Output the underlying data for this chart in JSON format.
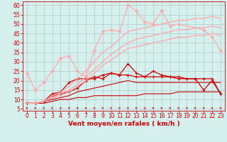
{
  "title": "",
  "xlabel": "Vent moyen/en rafales ( km/h )",
  "xlabel_color": "#cc0000",
  "bg_color": "#d6f0f0",
  "grid_color": "#b0c8c8",
  "x_ticks": [
    0,
    1,
    2,
    3,
    4,
    5,
    6,
    7,
    8,
    9,
    10,
    11,
    12,
    13,
    14,
    15,
    16,
    17,
    18,
    19,
    20,
    21,
    22,
    23
  ],
  "y_ticks": [
    5,
    10,
    15,
    20,
    25,
    30,
    35,
    40,
    45,
    50,
    55,
    60
  ],
  "xlim": [
    -0.5,
    23.5
  ],
  "ylim": [
    4,
    62
  ],
  "series": [
    {
      "x": [
        0,
        1,
        2,
        3,
        4,
        5,
        6,
        7,
        8,
        9,
        10,
        11,
        12,
        13,
        14,
        15,
        16,
        17,
        18,
        19,
        20,
        21,
        22,
        23
      ],
      "y": [
        8,
        8,
        8,
        9,
        10,
        10,
        11,
        11,
        12,
        12,
        12,
        12,
        12,
        12,
        13,
        13,
        13,
        13,
        14,
        14,
        14,
        14,
        14,
        14
      ],
      "color": "#cc0000",
      "lw": 0.8,
      "marker": null,
      "ms": 0,
      "alpha": 1.0,
      "linestyle": "-"
    },
    {
      "x": [
        0,
        1,
        2,
        3,
        4,
        5,
        6,
        7,
        8,
        9,
        10,
        11,
        12,
        13,
        14,
        15,
        16,
        17,
        18,
        19,
        20,
        21,
        22,
        23
      ],
      "y": [
        8,
        8,
        9,
        10,
        11,
        12,
        14,
        15,
        16,
        17,
        18,
        19,
        20,
        19,
        19,
        19,
        19,
        19,
        19,
        19,
        19,
        19,
        19,
        19
      ],
      "color": "#cc0000",
      "lw": 0.8,
      "marker": null,
      "ms": 0,
      "alpha": 1.0,
      "linestyle": "-"
    },
    {
      "x": [
        0,
        1,
        2,
        3,
        4,
        5,
        6,
        7,
        8,
        9,
        10,
        11,
        12,
        13,
        14,
        15,
        16,
        17,
        18,
        19,
        20,
        21,
        22,
        23
      ],
      "y": [
        8,
        8,
        9,
        12,
        13,
        14,
        16,
        20,
        22,
        21,
        24,
        23,
        23,
        22,
        22,
        22,
        22,
        22,
        22,
        21,
        21,
        21,
        21,
        13
      ],
      "color": "#cc0000",
      "lw": 0.9,
      "marker": "+",
      "ms": 3,
      "alpha": 1.0,
      "linestyle": "-"
    },
    {
      "x": [
        0,
        1,
        2,
        3,
        4,
        5,
        6,
        7,
        8,
        9,
        10,
        11,
        12,
        13,
        14,
        15,
        16,
        17,
        18,
        19,
        20,
        21,
        22,
        23
      ],
      "y": [
        8,
        8,
        9,
        13,
        14,
        19,
        21,
        21,
        21,
        23,
        24,
        23,
        29,
        24,
        22,
        25,
        23,
        22,
        21,
        21,
        21,
        15,
        20,
        13
      ],
      "color": "#cc0000",
      "lw": 0.9,
      "marker": "+",
      "ms": 3,
      "alpha": 1.0,
      "linestyle": "-"
    },
    {
      "x": [
        0,
        1,
        2,
        3,
        4,
        5,
        6,
        7,
        8,
        9,
        10,
        11,
        12,
        13,
        14,
        15,
        16,
        17,
        18,
        19,
        20,
        21,
        22,
        23
      ],
      "y": [
        24,
        15,
        19,
        25,
        32,
        33,
        25,
        22,
        36,
        46,
        47,
        46,
        60,
        57,
        51,
        50,
        57,
        49,
        50,
        null,
        null,
        47,
        43,
        36
      ],
      "color": "#ffaaaa",
      "lw": 0.9,
      "marker": "D",
      "ms": 2,
      "alpha": 1.0,
      "linestyle": "-"
    },
    {
      "x": [
        0,
        1,
        2,
        3,
        4,
        5,
        6,
        7,
        8,
        9,
        10,
        11,
        12,
        13,
        14,
        15,
        16,
        17,
        18,
        19,
        20,
        21,
        22,
        23
      ],
      "y": [
        8,
        8,
        9,
        11,
        12,
        14,
        17,
        20,
        24,
        28,
        31,
        34,
        37,
        38,
        39,
        40,
        41,
        42,
        43,
        43,
        44,
        44,
        45,
        44
      ],
      "color": "#ffaaaa",
      "lw": 1.0,
      "marker": null,
      "ms": 0,
      "alpha": 1.0,
      "linestyle": "-"
    },
    {
      "x": [
        0,
        1,
        2,
        3,
        4,
        5,
        6,
        7,
        8,
        9,
        10,
        11,
        12,
        13,
        14,
        15,
        16,
        17,
        18,
        19,
        20,
        21,
        22,
        23
      ],
      "y": [
        8,
        8,
        9,
        11,
        13,
        15,
        18,
        22,
        26,
        30,
        34,
        37,
        40,
        42,
        43,
        44,
        45,
        46,
        47,
        47,
        48,
        48,
        49,
        48
      ],
      "color": "#ffaaaa",
      "lw": 1.0,
      "marker": null,
      "ms": 0,
      "alpha": 1.0,
      "linestyle": "-"
    },
    {
      "x": [
        0,
        1,
        2,
        3,
        4,
        5,
        6,
        7,
        8,
        9,
        10,
        11,
        12,
        13,
        14,
        15,
        16,
        17,
        18,
        19,
        20,
        21,
        22,
        23
      ],
      "y": [
        8,
        8,
        9,
        12,
        14,
        17,
        21,
        25,
        30,
        35,
        38,
        42,
        46,
        47,
        48,
        49,
        50,
        51,
        52,
        52,
        53,
        53,
        54,
        53
      ],
      "color": "#ffaaaa",
      "lw": 1.0,
      "marker": null,
      "ms": 0,
      "alpha": 1.0,
      "linestyle": "-"
    }
  ],
  "arrow_color": "#cc0000",
  "tick_color": "#cc0000",
  "tick_fontsize": 5.5,
  "xlabel_fontsize": 6.5
}
